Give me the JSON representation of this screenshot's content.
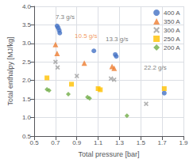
{
  "chart_data": {
    "type": "scatter",
    "xlabel": "Total pressure [bar]",
    "ylabel": "Total enthalpy [MJ/kg]",
    "xlim": [
      0.5,
      1.9
    ],
    "ylim": [
      0.5,
      4.0
    ],
    "xticks": [
      0.5,
      0.7,
      0.9,
      1.1,
      1.3,
      1.5,
      1.7,
      1.9
    ],
    "yticks": [
      0.5,
      {
        "value": 1.0,
        "label": "1.0"
      },
      1.5,
      {
        "value": 2.0,
        "label": "2.0"
      },
      2.5,
      {
        "value": 3.0,
        "label": "3.0"
      },
      3.5,
      {
        "value": 4.0,
        "label": "4.0"
      }
    ],
    "grid": true,
    "legend": "upper right",
    "series": [
      {
        "name": "400 A",
        "color": "#4472C4",
        "marker": "circle",
        "x": [
          0.715,
          0.725,
          0.735,
          0.74,
          1.06,
          1.26,
          1.27,
          1.72
        ],
        "y": [
          3.47,
          3.42,
          3.35,
          3.28,
          2.8,
          2.7,
          2.65,
          1.66
        ]
      },
      {
        "name": "350 A",
        "color": "#ED7D31",
        "marker": "triangle",
        "x": [
          0.7,
          0.715,
          0.97,
          1.23,
          1.25
        ],
        "y": [
          2.97,
          2.73,
          2.47,
          2.38,
          2.33
        ]
      },
      {
        "name": "300 A",
        "color": "#A0A0A0",
        "marker": "x",
        "x": [
          0.7,
          0.72,
          0.9,
          1.22,
          1.25,
          1.55
        ],
        "y": [
          2.5,
          2.35,
          2.12,
          2.05,
          2.02,
          1.37
        ]
      },
      {
        "name": "250 A",
        "color": "#FFC000",
        "marker": "square",
        "x": [
          0.62,
          0.85,
          1.1,
          1.12,
          1.72
        ],
        "y": [
          2.07,
          1.9,
          1.78,
          1.75,
          1.78
        ]
      },
      {
        "name": "200 A",
        "color": "#70AD47",
        "marker": "diamond",
        "x": [
          0.62,
          0.64,
          0.82,
          1.0,
          1.02,
          1.37
        ],
        "y": [
          1.76,
          1.73,
          1.63,
          1.55,
          1.52,
          1.05
        ]
      }
    ],
    "annotations": [
      {
        "text": "7.3 g/s",
        "x": 0.7,
        "y": 3.63,
        "color": "#555555"
      },
      {
        "text": "10.5 g/s",
        "x": 0.88,
        "y": 3.12,
        "color": "#ED7D31"
      },
      {
        "text": "13.3 g/s",
        "x": 1.17,
        "y": 3.02,
        "color": "#555555"
      },
      {
        "text": "22.2 g/s",
        "x": 1.53,
        "y": 2.27,
        "color": "#555555"
      }
    ]
  }
}
